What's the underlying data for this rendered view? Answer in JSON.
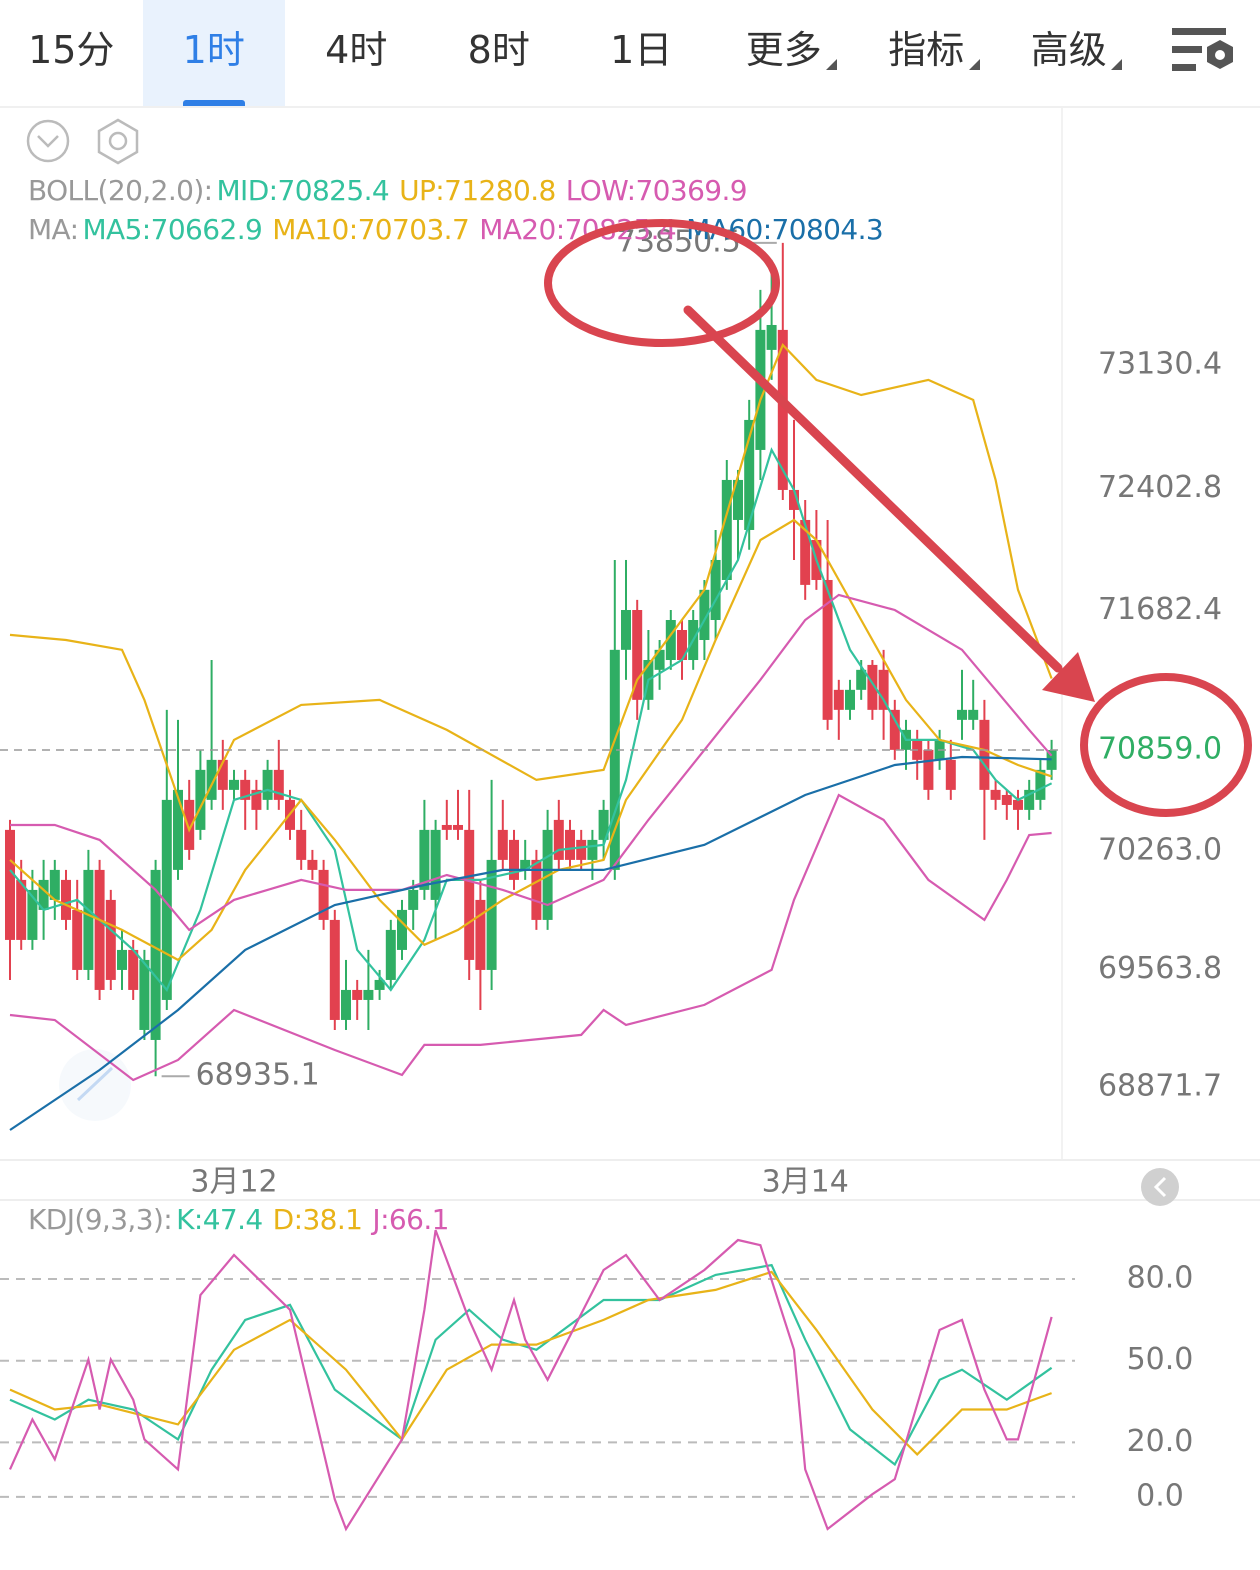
{
  "tabs": [
    "15分",
    "1时",
    "4时",
    "8时",
    "1日",
    "更多",
    "指标",
    "高级"
  ],
  "chart_data": [
    {
      "type": "candlestick",
      "boll_label": "BOLL(20,2.0):",
      "ma_label": "MA:",
      "boll_mid_legend": {
        "name": "MID:70825.4",
        "color": "#33c29e"
      },
      "up_color": "#2fae64",
      "down_color": "#e2414f",
      "last_price_label": "70859.0",
      "categories": [
        null,
        null,
        null,
        null,
        null,
        null,
        null,
        null,
        null,
        null,
        null,
        null,
        null,
        null,
        null,
        null,
        null,
        null,
        null,
        null,
        "3月12",
        null,
        null,
        null,
        null,
        null,
        null,
        null,
        null,
        null,
        null,
        null,
        null,
        null,
        null,
        null,
        null,
        null,
        null,
        null,
        null,
        null,
        null,
        null,
        null,
        null,
        null,
        null,
        null,
        null,
        null,
        null,
        null,
        null,
        null,
        null,
        null,
        null,
        null,
        null,
        null,
        null,
        null,
        null,
        null,
        null,
        null,
        null,
        null,
        null,
        null,
        "3月14",
        null,
        null,
        null,
        null,
        null,
        null,
        null,
        null,
        null,
        null,
        null,
        null,
        null,
        null,
        null,
        null,
        null,
        null,
        null,
        null,
        null,
        null
      ],
      "open": [
        70388,
        70093,
        69739,
        69916,
        69975,
        70093,
        69916,
        69562,
        70152,
        69975,
        69562,
        69680,
        69208,
        69149,
        69385,
        70152,
        70565,
        70388,
        70565,
        70801,
        70624,
        70683,
        70624,
        70565,
        70742,
        70565,
        70388,
        70211,
        70152,
        69857,
        69267,
        69444,
        69385,
        69444,
        69503,
        69680,
        69916,
        70034,
        69975,
        70417,
        70417,
        70388,
        69975,
        69562,
        70388,
        70329,
        70152,
        70211,
        69857,
        70447,
        70388,
        70329,
        70211,
        70329,
        70152,
        71450,
        71685,
        71155,
        71332,
        71390,
        71567,
        71390,
        71508,
        71626,
        71862,
        72216,
        72157,
        72629,
        73219,
        73337,
        72393,
        72216,
        72098,
        71862,
        71214,
        71096,
        71214,
        71361,
        71332,
        71096,
        70860,
        70919,
        70860,
        70801,
        70801,
        71037,
        71037,
        71037,
        70624,
        70594,
        70565,
        70506,
        70565,
        70742
      ],
      "high": [
        70447,
        70211,
        70152,
        70211,
        70211,
        70152,
        70093,
        70270,
        70211,
        70034,
        69798,
        69739,
        69680,
        70211,
        71096,
        71037,
        70683,
        70860,
        71390,
        70919,
        70742,
        70742,
        70683,
        70801,
        70919,
        70624,
        70506,
        70270,
        70211,
        69916,
        69621,
        69503,
        69680,
        69562,
        69857,
        69975,
        70093,
        70565,
        70447,
        70565,
        70624,
        70624,
        70093,
        70683,
        70565,
        70388,
        70329,
        70270,
        70506,
        70565,
        70447,
        70388,
        70388,
        70565,
        71980,
        71980,
        71745,
        71567,
        71508,
        71685,
        71626,
        71685,
        71862,
        72157,
        72570,
        72511,
        72924,
        73573,
        73750,
        73850.5,
        72806,
        72334,
        72275,
        72216,
        71273,
        71273,
        71390,
        71390,
        71450,
        71155,
        71037,
        70978,
        70919,
        70978,
        70919,
        71332,
        71273,
        71155,
        70683,
        70624,
        70624,
        70683,
        70801,
        70919
      ],
      "low": [
        69503,
        69680,
        69680,
        69739,
        69857,
        69798,
        69503,
        69503,
        69385,
        69444,
        69444,
        69385,
        69149,
        68935.1,
        69326,
        70093,
        70211,
        70329,
        70506,
        70506,
        70565,
        70388,
        70388,
        70506,
        70506,
        70329,
        70152,
        70093,
        69798,
        69208,
        69208,
        69267,
        69208,
        69385,
        69444,
        69621,
        69798,
        69975,
        69739,
        70329,
        70329,
        69503,
        69326,
        69444,
        70152,
        70034,
        70093,
        69798,
        69798,
        70152,
        70152,
        70152,
        70093,
        70211,
        70093,
        71273,
        71037,
        71096,
        71214,
        71332,
        71273,
        71332,
        71390,
        71508,
        71804,
        71980,
        72040,
        72452,
        73042,
        72334,
        71980,
        71745,
        71804,
        70978,
        70919,
        71037,
        71155,
        71037,
        70919,
        70801,
        70742,
        70683,
        70565,
        70742,
        70565,
        70919,
        70978,
        70329,
        70506,
        70447,
        70388,
        70447,
        70506,
        70683
      ],
      "close": [
        69739,
        69739,
        70034,
        70093,
        70152,
        69857,
        69562,
        70152,
        69444,
        69503,
        69680,
        69444,
        69621,
        70152,
        70565,
        70624,
        70270,
        70742,
        70801,
        70624,
        70683,
        70565,
        70506,
        70742,
        70565,
        70388,
        70211,
        70152,
        69857,
        69267,
        69444,
        69385,
        69444,
        69503,
        69798,
        69916,
        70034,
        70388,
        70388,
        70388,
        70388,
        69621,
        69562,
        70211,
        70211,
        70093,
        70211,
        69857,
        70388,
        70211,
        70211,
        70211,
        70329,
        70506,
        71450,
        71685,
        71155,
        71390,
        71450,
        71626,
        71390,
        71626,
        71804,
        71980,
        72452,
        72452,
        72806,
        73337,
        73366,
        72393,
        72275,
        71833,
        71862,
        71037,
        71096,
        71214,
        71332,
        71096,
        71096,
        70860,
        70978,
        70801,
        70624,
        70919,
        70624,
        71096,
        71096,
        70624,
        70565,
        70535,
        70506,
        70624,
        70742,
        70859.0
      ],
      "series": [
        {
          "name": "UP:71280.8",
          "color": "#e8b318",
          "group": "boll",
          "x": [
            0,
            5,
            10,
            12,
            16,
            20,
            26,
            33,
            39,
            47,
            53,
            56,
            62,
            67,
            69,
            72,
            76,
            82,
            86,
            88,
            90,
            93
          ],
          "values": [
            71538,
            71508,
            71450,
            71155,
            70388,
            70919,
            71125,
            71155,
            70978,
            70683,
            70742,
            71273,
            71804,
            72924,
            73248,
            73042,
            72953,
            73042,
            72924,
            72452,
            71804,
            71280.8
          ]
        },
        {
          "name": "LOW:70369.9",
          "color": "#d65bb0",
          "group": "boll",
          "x": [
            0,
            4,
            11,
            15,
            20,
            29,
            35,
            37,
            42,
            51,
            53,
            55,
            62,
            68,
            70,
            74,
            78,
            82,
            87,
            89,
            91,
            93
          ],
          "values": [
            69296,
            69267,
            68913,
            69031,
            69326,
            69090,
            68943,
            69120,
            69120,
            69179,
            69326,
            69238,
            69356,
            69562,
            69975,
            70594,
            70447,
            70093,
            69857,
            70093,
            70358,
            70369.9
          ]
        },
        {
          "name": "MA5:70662.9",
          "color": "#33c29e",
          "group": "ma",
          "x": [
            0,
            3,
            6,
            11,
            14,
            17,
            20,
            23,
            26,
            29,
            31,
            34,
            37,
            39,
            42,
            46,
            49,
            53,
            55,
            57,
            60,
            62,
            65,
            68,
            70,
            72,
            75,
            78,
            80,
            83,
            86,
            88,
            90,
            93
          ],
          "values": [
            70152,
            69916,
            69975,
            69680,
            69444,
            69916,
            70565,
            70624,
            70565,
            70270,
            69680,
            69444,
            69739,
            70093,
            70093,
            70152,
            70270,
            70300,
            70683,
            71273,
            71390,
            71626,
            71980,
            72629,
            72393,
            71980,
            71450,
            71155,
            70919,
            70919,
            70860,
            70683,
            70565,
            70662.9
          ]
        },
        {
          "name": "MA10:70703.7",
          "color": "#e8b318",
          "group": "ma",
          "x": [
            0,
            4,
            10,
            15,
            18,
            21,
            26,
            29,
            33,
            37,
            40,
            44,
            49,
            53,
            55,
            60,
            63,
            67,
            70,
            72,
            76,
            80,
            83,
            87,
            90,
            93
          ],
          "values": [
            70211,
            69975,
            69798,
            69621,
            69798,
            70152,
            70565,
            70329,
            69975,
            69710,
            69798,
            69975,
            70152,
            70211,
            70565,
            71037,
            71508,
            72098,
            72216,
            72098,
            71626,
            71155,
            70919,
            70860,
            70771,
            70703.7
          ]
        },
        {
          "name": "MA20:70825.4",
          "color": "#d65bb0",
          "group": "ma",
          "x": [
            0,
            4,
            8,
            13,
            16,
            20,
            26,
            30,
            35,
            39,
            44,
            48,
            53,
            57,
            62,
            67,
            71,
            74,
            79,
            85,
            88,
            91,
            93
          ],
          "values": [
            70417,
            70417,
            70329,
            70034,
            69798,
            69975,
            70093,
            70034,
            70034,
            70122,
            70034,
            69945,
            70093,
            70447,
            70860,
            71273,
            71626,
            71774,
            71685,
            71450,
            71214,
            70978,
            70825.4
          ]
        },
        {
          "name": "MA60:70804.3",
          "color": "#1a6fa8",
          "group": "ma",
          "x": [
            0,
            8,
            15,
            21,
            29,
            37,
            44,
            53,
            62,
            71,
            79,
            85,
            93
          ],
          "values": [
            68618,
            68972,
            69326,
            69680,
            69945,
            70063,
            70152,
            70152,
            70300,
            70594,
            70771,
            70818,
            70804.3
          ]
        }
      ],
      "ylim": [
        68441,
        74634
      ],
      "yticks": [
        73130.4,
        72402.8,
        71682.4,
        {
          "value": 70263.0,
          "label": "70263.0"
        },
        69563.8,
        68871.7
      ],
      "grid": false
    },
    {
      "type": "line",
      "title": "KDJ(9,3,3):",
      "series": [
        {
          "name": "K:47.4",
          "color": "#33c29e",
          "x": [
            0,
            4,
            7,
            11,
            15,
            18,
            21,
            25,
            29,
            35,
            38,
            41,
            44,
            47,
            53,
            58,
            63,
            68,
            71,
            75,
            79,
            83,
            85,
            89,
            93
          ],
          "values": [
            35.7,
            28.4,
            35.7,
            32.1,
            21.1,
            46.7,
            65.0,
            70.5,
            39.4,
            21.1,
            57.7,
            68.7,
            57.7,
            54.0,
            72.3,
            72.3,
            81.5,
            85.1,
            57.7,
            24.8,
            11.9,
            43.0,
            46.7,
            35.7,
            47.4
          ]
        },
        {
          "name": "D:38.1",
          "color": "#e8b318",
          "x": [
            0,
            4,
            8,
            15,
            20,
            25,
            30,
            35,
            39,
            43,
            47,
            53,
            57,
            63,
            68,
            72,
            77,
            81,
            85,
            89,
            93
          ],
          "values": [
            39.4,
            32.1,
            33.9,
            26.6,
            54.0,
            65.0,
            46.7,
            21.1,
            46.7,
            55.9,
            55.9,
            65.0,
            72.3,
            76.0,
            82.6,
            61.3,
            32.1,
            15.6,
            32.1,
            32.1,
            38.1
          ]
        },
        {
          "name": "J:66.1",
          "color": "#d65bb0",
          "x": [
            0,
            2,
            4,
            7,
            8,
            9,
            11,
            12,
            15,
            17,
            20,
            25,
            29,
            30,
            35,
            37,
            38,
            41,
            43,
            45,
            46,
            48,
            53,
            55,
            58,
            62,
            65,
            67,
            70,
            71,
            73,
            77,
            79,
            83,
            85,
            87,
            89,
            90,
            93
          ],
          "values": [
            10.1,
            28.4,
            13.8,
            50.4,
            32.1,
            50.4,
            35.7,
            21.1,
            10.1,
            74.1,
            88.8,
            68.7,
            -0.9,
            -11.8,
            21.1,
            68.7,
            97.9,
            65.0,
            46.7,
            72.3,
            57.7,
            43.0,
            83.3,
            88.8,
            72.3,
            83.3,
            94.3,
            92.4,
            54.0,
            10.1,
            -11.8,
            1.0,
            6.5,
            61.3,
            65.0,
            39.4,
            21.1,
            21.1,
            66.1
          ]
        }
      ],
      "ylim": [
        -25,
        109
      ],
      "yticks": [
        {
          "value": 80,
          "label": "80.0"
        },
        {
          "value": 50,
          "label": "50.0"
        },
        {
          "value": 20,
          "label": "20.0"
        },
        {
          "value": 0,
          "label": "0.0"
        }
      ],
      "grid": true
    }
  ]
}
